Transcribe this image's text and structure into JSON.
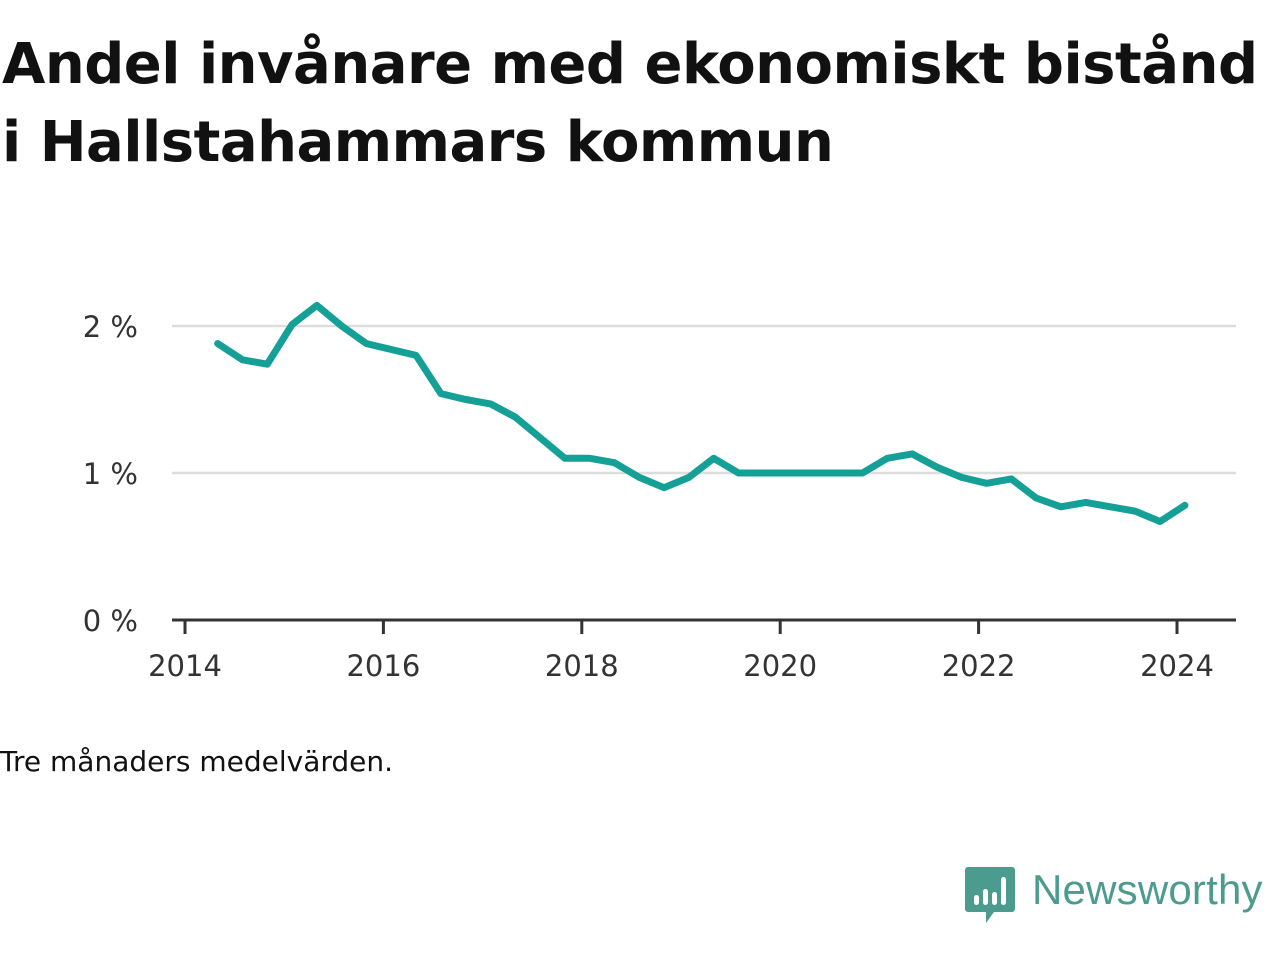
{
  "title": "Andel invånare med ekonomiskt bistånd i Hallstahammars kommun",
  "note": "Tre månaders medelvärden.",
  "brand": {
    "name": "Newsworthy",
    "color": "#4b9b8f"
  },
  "colors": {
    "line": "#14a096",
    "grid": "#dddddd",
    "axis": "#333333"
  },
  "chart_data": {
    "type": "line",
    "title": "Andel invånare med ekonomiskt bistånd i Hallstahammars kommun",
    "xlabel": "",
    "ylabel": "",
    "xlim": [
      2014,
      2024.6
    ],
    "ylim": [
      0,
      2
    ],
    "y_ticks": [
      {
        "value": 0,
        "label": "0 %"
      },
      {
        "value": 1,
        "label": "1 %"
      },
      {
        "value": 2,
        "label": "2 %"
      }
    ],
    "x_ticks": [
      {
        "value": 2014,
        "label": "2014"
      },
      {
        "value": 2016,
        "label": "2016"
      },
      {
        "value": 2018,
        "label": "2018"
      },
      {
        "value": 2020,
        "label": "2020"
      },
      {
        "value": 2022,
        "label": "2022"
      },
      {
        "value": 2024,
        "label": "2024"
      }
    ],
    "grid": true,
    "series": [
      {
        "x": [
          2014.33,
          2014.58,
          2014.83,
          2015.08,
          2015.33,
          2015.58,
          2015.83,
          2016.08,
          2016.33,
          2016.58,
          2016.83,
          2017.08,
          2017.33,
          2017.58,
          2017.83,
          2018.08,
          2018.33,
          2018.58,
          2018.83,
          2019.08,
          2019.33,
          2019.58,
          2019.83,
          2020.08,
          2020.33,
          2020.58,
          2020.83,
          2021.08,
          2021.33,
          2021.58,
          2021.83,
          2022.08,
          2022.33,
          2022.58,
          2022.83,
          2023.08,
          2023.33,
          2023.58,
          2023.83,
          2024.08
        ],
        "values": [
          1.88,
          1.77,
          1.74,
          2.01,
          2.14,
          2.0,
          1.88,
          1.84,
          1.8,
          1.54,
          1.5,
          1.47,
          1.38,
          1.24,
          1.1,
          1.1,
          1.07,
          0.97,
          0.9,
          0.97,
          1.1,
          1.0,
          1.0,
          1.0,
          1.0,
          1.0,
          1.0,
          1.1,
          1.13,
          1.04,
          0.97,
          0.93,
          0.96,
          0.83,
          0.77,
          0.8,
          0.77,
          0.74,
          0.67,
          0.78
        ]
      }
    ]
  }
}
